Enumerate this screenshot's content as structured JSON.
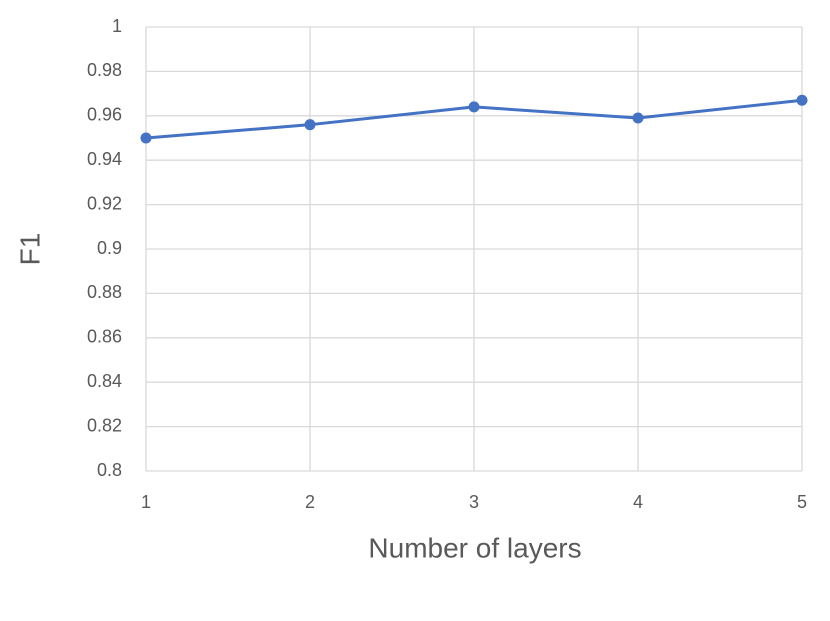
{
  "chart_data": {
    "type": "line",
    "x_label": "Number of layers",
    "y_label": "F1",
    "x": [
      1,
      2,
      3,
      4,
      5
    ],
    "series": [
      {
        "name": "F1",
        "color": "#4472c4",
        "values": [
          0.95,
          0.956,
          0.964,
          0.959,
          0.967
        ]
      }
    ],
    "xlim": [
      1,
      5
    ],
    "xticks": [
      1,
      2,
      3,
      4,
      5
    ],
    "ylim": [
      0.8,
      1
    ],
    "yticks": [
      0.8,
      0.82,
      0.84,
      0.86,
      0.88,
      0.9,
      0.92,
      0.94,
      0.96,
      0.98,
      1
    ],
    "grid": true
  }
}
